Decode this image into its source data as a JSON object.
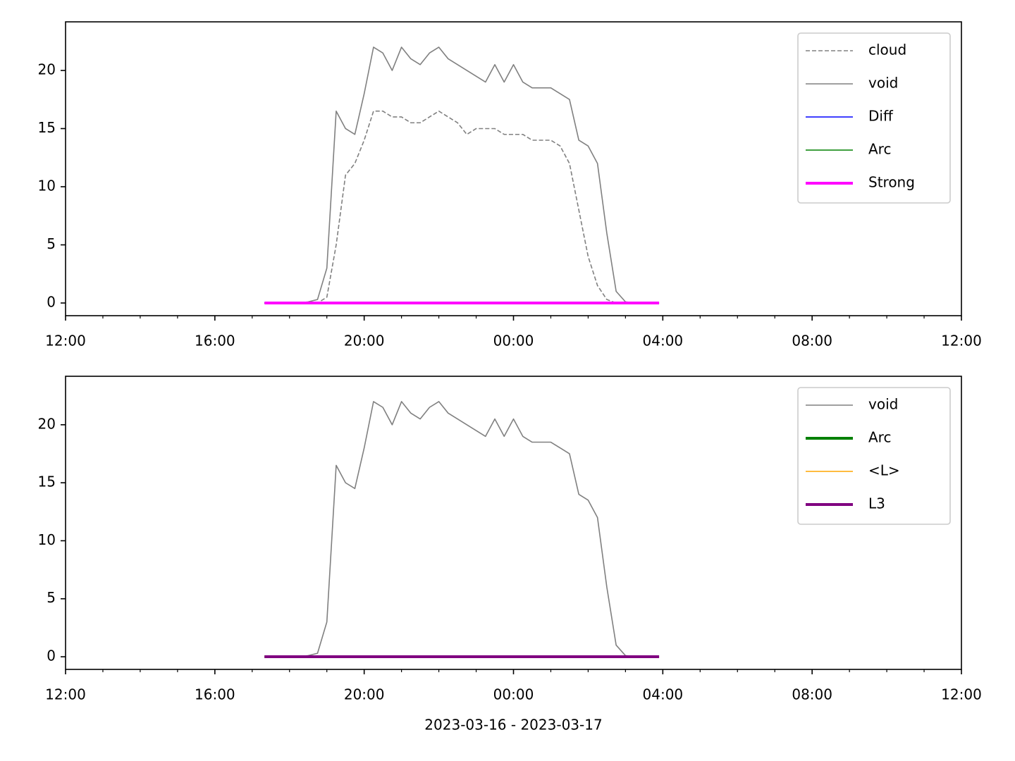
{
  "chart_data": [
    {
      "type": "line",
      "x": [
        5.33,
        5.5,
        5.75,
        6,
        6.25,
        6.5,
        6.75,
        7,
        7.25,
        7.5,
        7.75,
        8,
        8.25,
        8.5,
        8.75,
        9,
        9.25,
        9.5,
        9.75,
        10,
        10.25,
        10.5,
        10.75,
        11,
        11.25,
        11.5,
        11.75,
        12,
        12.25,
        12.5,
        12.75,
        13,
        13.25,
        13.5,
        13.75,
        14,
        14.25,
        14.5,
        14.75,
        15,
        15.25,
        15.5,
        15.75,
        15.9
      ],
      "series": [
        {
          "name": "cloud",
          "color": "#808080",
          "linestyle": "dashed",
          "linewidth": 1.6,
          "values": [
            0,
            0,
            0,
            0,
            0,
            0,
            0,
            0.5,
            5,
            11,
            12,
            14,
            16.5,
            16.5,
            16,
            16,
            15.5,
            15.5,
            16,
            16.5,
            16,
            15.5,
            14.5,
            15,
            15,
            15,
            14.5,
            14.5,
            14.5,
            14,
            14,
            14,
            13.5,
            12,
            8,
            4,
            1.5,
            0.3,
            0,
            0,
            0,
            0,
            0,
            0
          ]
        },
        {
          "name": "void",
          "color": "#808080",
          "linestyle": "solid",
          "linewidth": 1.6,
          "values": [
            0,
            0,
            0,
            0,
            0,
            0.1,
            0.3,
            3,
            16.5,
            15,
            14.5,
            18,
            22,
            21.5,
            20,
            22,
            21,
            20.5,
            21.5,
            22,
            21,
            20.5,
            20,
            19.5,
            19,
            20.5,
            19,
            20.5,
            19,
            18.5,
            18.5,
            18.5,
            18,
            17.5,
            14,
            13.5,
            12,
            6,
            1,
            0.1,
            0,
            0,
            0,
            0
          ]
        },
        {
          "name": "Diff",
          "color": "#0000ff",
          "linestyle": "solid",
          "linewidth": 1.6,
          "values": [
            0,
            0,
            0,
            0,
            0,
            0,
            0,
            0,
            0,
            0,
            0,
            0,
            0,
            0,
            0,
            0,
            0,
            0,
            0,
            0,
            0,
            0,
            0,
            0,
            0,
            0,
            0,
            0,
            0,
            0,
            0,
            0,
            0,
            0,
            0,
            0,
            0,
            0,
            0,
            0,
            0,
            0,
            0,
            0
          ]
        },
        {
          "name": "Arc",
          "color": "#008000",
          "linestyle": "solid",
          "linewidth": 1.6,
          "values": [
            0,
            0,
            0,
            0,
            0,
            0,
            0,
            0,
            0,
            0,
            0,
            0,
            0,
            0,
            0,
            0,
            0,
            0,
            0,
            0,
            0,
            0,
            0,
            0,
            0,
            0,
            0,
            0,
            0,
            0,
            0,
            0,
            0,
            0,
            0,
            0,
            0,
            0,
            0,
            0,
            0,
            0,
            0,
            0
          ]
        },
        {
          "name": "Strong",
          "color": "#ff00ff",
          "linestyle": "solid",
          "linewidth": 4,
          "values": [
            0,
            0,
            0,
            0,
            0,
            0,
            0,
            0,
            0,
            0,
            0,
            0,
            0,
            0,
            0,
            0,
            0,
            0,
            0,
            0,
            0,
            0,
            0,
            0,
            0,
            0,
            0,
            0,
            0,
            0,
            0,
            0,
            0,
            0,
            0,
            0,
            0,
            0,
            0,
            0,
            0,
            0,
            0,
            0
          ]
        }
      ],
      "xlim": [
        0,
        24
      ],
      "xticks": [
        {
          "value": 0,
          "label": "12:00"
        },
        {
          "value": 4,
          "label": "16:00"
        },
        {
          "value": 8,
          "label": "20:00"
        },
        {
          "value": 12,
          "label": "00:00"
        },
        {
          "value": 16,
          "label": "04:00"
        },
        {
          "value": 20,
          "label": "08:00"
        },
        {
          "value": 24,
          "label": "12:00"
        }
      ],
      "xminorticks": [
        1,
        2,
        3,
        5,
        6,
        7,
        9,
        10,
        11,
        13,
        14,
        15,
        17,
        18,
        19,
        21,
        22,
        23
      ],
      "ylim": [
        -1.09,
        24.18
      ],
      "yticks": [
        0,
        5,
        10,
        15,
        20
      ],
      "legend": "upper right"
    },
    {
      "type": "line",
      "x": [
        5.33,
        5.5,
        5.75,
        6,
        6.25,
        6.5,
        6.75,
        7,
        7.25,
        7.5,
        7.75,
        8,
        8.25,
        8.5,
        8.75,
        9,
        9.25,
        9.5,
        9.75,
        10,
        10.25,
        10.5,
        10.75,
        11,
        11.25,
        11.5,
        11.75,
        12,
        12.25,
        12.5,
        12.75,
        13,
        13.25,
        13.5,
        13.75,
        14,
        14.25,
        14.5,
        14.75,
        15,
        15.25,
        15.5,
        15.75,
        15.9
      ],
      "series": [
        {
          "name": "void",
          "color": "#808080",
          "linestyle": "solid",
          "linewidth": 1.6,
          "values": [
            0,
            0,
            0,
            0,
            0,
            0.1,
            0.3,
            3,
            16.5,
            15,
            14.5,
            18,
            22,
            21.5,
            20,
            22,
            21,
            20.5,
            21.5,
            22,
            21,
            20.5,
            20,
            19.5,
            19,
            20.5,
            19,
            20.5,
            19,
            18.5,
            18.5,
            18.5,
            18,
            17.5,
            14,
            13.5,
            12,
            6,
            1,
            0.1,
            0,
            0,
            0,
            0
          ]
        },
        {
          "name": "Arc",
          "color": "#008000",
          "linestyle": "solid",
          "linewidth": 4,
          "values": [
            0,
            0,
            0,
            0,
            0,
            0,
            0,
            0,
            0,
            0,
            0,
            0,
            0,
            0,
            0,
            0,
            0,
            0,
            0,
            0,
            0,
            0,
            0,
            0,
            0,
            0,
            0,
            0,
            0,
            0,
            0,
            0,
            0,
            0,
            0,
            0,
            0,
            0,
            0,
            0,
            0,
            0,
            0,
            0
          ]
        },
        {
          "name": "<L>",
          "color": "#ffa500",
          "linestyle": "solid",
          "linewidth": 1.6,
          "values": [
            0,
            0,
            0,
            0,
            0,
            0,
            0,
            0,
            0,
            0,
            0,
            0,
            0,
            0,
            0,
            0,
            0,
            0,
            0,
            0,
            0,
            0,
            0,
            0,
            0,
            0,
            0,
            0,
            0,
            0,
            0,
            0,
            0,
            0,
            0,
            0,
            0,
            0,
            0,
            0,
            0,
            0,
            0,
            0
          ]
        },
        {
          "name": "L3",
          "color": "#800080",
          "linestyle": "solid",
          "linewidth": 4,
          "values": [
            0,
            0,
            0,
            0,
            0,
            0,
            0,
            0,
            0,
            0,
            0,
            0,
            0,
            0,
            0,
            0,
            0,
            0,
            0,
            0,
            0,
            0,
            0,
            0,
            0,
            0,
            0,
            0,
            0,
            0,
            0,
            0,
            0,
            0,
            0,
            0,
            0,
            0,
            0,
            0,
            0,
            0,
            0,
            0
          ]
        }
      ],
      "xlim": [
        0,
        24
      ],
      "xticks": [
        {
          "value": 0,
          "label": "12:00"
        },
        {
          "value": 4,
          "label": "16:00"
        },
        {
          "value": 8,
          "label": "20:00"
        },
        {
          "value": 12,
          "label": "00:00"
        },
        {
          "value": 16,
          "label": "04:00"
        },
        {
          "value": 20,
          "label": "08:00"
        },
        {
          "value": 24,
          "label": "12:00"
        }
      ],
      "xminorticks": [
        1,
        2,
        3,
        5,
        6,
        7,
        9,
        10,
        11,
        13,
        14,
        15,
        17,
        18,
        19,
        21,
        22,
        23
      ],
      "ylim": [
        -1.09,
        24.18
      ],
      "yticks": [
        0,
        5,
        10,
        15,
        20
      ],
      "legend": "upper right",
      "xlabel": "2023-03-16 - 2023-03-17"
    }
  ]
}
